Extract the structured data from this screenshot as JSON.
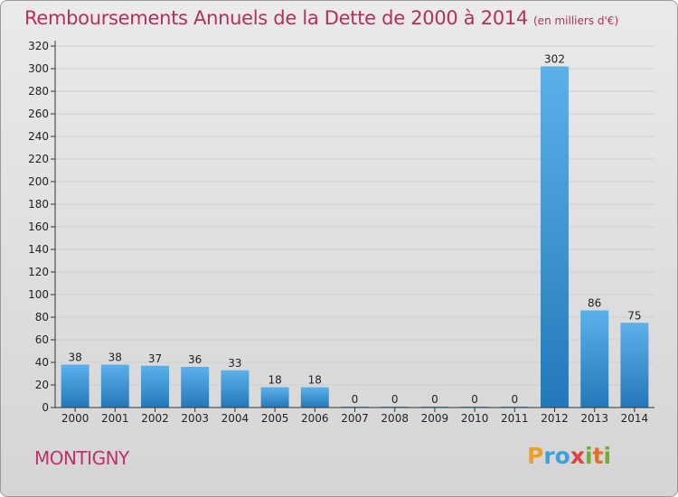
{
  "title": "Remboursements Annuels de la Dette de 2000 à 2014",
  "unit": "(en milliers d'€)",
  "city": "MONTIGNY",
  "logo": {
    "letters": [
      "P",
      "r",
      "o",
      "x",
      "i",
      "t",
      "i"
    ],
    "colors": [
      "#f0a020",
      "#3aa0e0",
      "#3aa0e0",
      "#e04040",
      "#70b030",
      "#e07030",
      "#70b030"
    ]
  },
  "colors": {
    "bar_light": "#5cb0ea",
    "bar_dark": "#2478b8",
    "grid": "#cfcfcf",
    "axis": "#333333",
    "title": "#b0305f"
  },
  "chart_data": {
    "type": "bar",
    "title": "Remboursements Annuels de la Dette de 2000 à 2014",
    "xlabel": "",
    "ylabel": "",
    "ylim": [
      0,
      320
    ],
    "yticks": [
      0,
      20,
      40,
      60,
      80,
      100,
      120,
      140,
      160,
      180,
      200,
      220,
      240,
      260,
      280,
      300,
      320
    ],
    "categories": [
      "2000",
      "2001",
      "2002",
      "2003",
      "2004",
      "2005",
      "2006",
      "2007",
      "2008",
      "2009",
      "2010",
      "2011",
      "2012",
      "2013",
      "2014"
    ],
    "values": [
      38,
      38,
      37,
      36,
      33,
      18,
      18,
      0,
      0,
      0,
      0,
      0,
      302,
      86,
      75
    ]
  }
}
